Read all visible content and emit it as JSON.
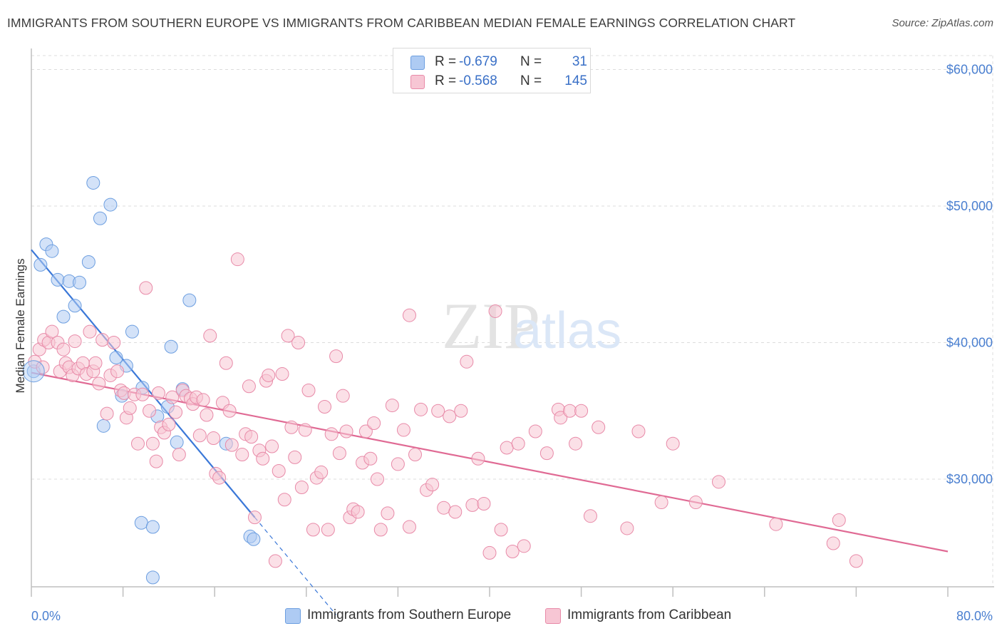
{
  "title": "IMMIGRANTS FROM SOUTHERN EUROPE VS IMMIGRANTS FROM CARIBBEAN MEDIAN FEMALE EARNINGS CORRELATION CHART",
  "source": "Source: ZipAtlas.com",
  "watermark": {
    "zip": "ZIP",
    "atlas": "atlas"
  },
  "legend": {
    "r_label": "R =",
    "n_label": "N =",
    "rows": [
      {
        "r": "-0.679",
        "n": "31",
        "color": "#aecbf3",
        "border": "#6c9ee0"
      },
      {
        "r": "-0.568",
        "n": "145",
        "color": "#f7c6d4",
        "border": "#e88aa8"
      }
    ]
  },
  "bottom_legend": [
    {
      "label": "Immigrants from Southern Europe",
      "color": "#aecbf3",
      "border": "#6c9ee0"
    },
    {
      "label": "Immigrants from Caribbean",
      "color": "#f7c6d4",
      "border": "#e88aa8"
    }
  ],
  "chart_data": {
    "type": "scatter",
    "ylabel": "Median Female Earnings",
    "xlim": [
      0,
      80
    ],
    "ylim": [
      21000,
      63000
    ],
    "x_tick_labels": [
      "0.0%",
      "80.0%"
    ],
    "y_ticks": [
      30000,
      40000,
      50000,
      60000
    ],
    "y_tick_labels": [
      "$30,000",
      "$40,000",
      "$50,000",
      "$60,000"
    ],
    "grid": true,
    "legend_position": "top-center",
    "series": [
      {
        "name": "Immigrants from Southern Europe",
        "color": "#aecbf3",
        "stroke": "#6c9ee0",
        "trend_color": "#3b78d8",
        "trend": {
          "x0": 0,
          "y0": 46800,
          "x1": 19.5,
          "y1": 27200,
          "dash_to_x": 26.6
        },
        "points": [
          [
            0.2,
            37900
          ],
          [
            0.8,
            45700
          ],
          [
            1.3,
            47200
          ],
          [
            1.8,
            46700
          ],
          [
            2.3,
            44600
          ],
          [
            2.8,
            41900
          ],
          [
            3.3,
            44500
          ],
          [
            3.8,
            42700
          ],
          [
            4.2,
            44400
          ],
          [
            5.0,
            45900
          ],
          [
            5.4,
            51700
          ],
          [
            6.0,
            49100
          ],
          [
            6.3,
            33900
          ],
          [
            6.9,
            50100
          ],
          [
            7.4,
            38900
          ],
          [
            7.9,
            36100
          ],
          [
            8.3,
            38300
          ],
          [
            8.8,
            40800
          ],
          [
            9.7,
            36700
          ],
          [
            9.6,
            26800
          ],
          [
            10.6,
            26500
          ],
          [
            10.6,
            22800
          ],
          [
            11.0,
            34600
          ],
          [
            11.9,
            35300
          ],
          [
            12.2,
            39700
          ],
          [
            12.7,
            32700
          ],
          [
            13.2,
            36600
          ],
          [
            13.8,
            43100
          ],
          [
            17.0,
            32600
          ],
          [
            19.1,
            25800
          ],
          [
            19.4,
            25600
          ]
        ]
      },
      {
        "name": "Immigrants from Caribbean",
        "color": "#f7c6d4",
        "stroke": "#e88aa8",
        "trend_color": "#e06a94",
        "trend": {
          "x0": 0,
          "y0": 37800,
          "x1": 80,
          "y1": 24700
        },
        "points": [
          [
            0.3,
            38600
          ],
          [
            0.7,
            39500
          ],
          [
            1.0,
            38200
          ],
          [
            1.1,
            40200
          ],
          [
            1.5,
            40000
          ],
          [
            1.8,
            40800
          ],
          [
            2.3,
            40000
          ],
          [
            2.5,
            37900
          ],
          [
            2.8,
            39500
          ],
          [
            3.0,
            38500
          ],
          [
            3.3,
            38200
          ],
          [
            3.6,
            37600
          ],
          [
            3.8,
            40100
          ],
          [
            4.1,
            38100
          ],
          [
            4.5,
            38500
          ],
          [
            4.8,
            37700
          ],
          [
            5.1,
            40800
          ],
          [
            5.4,
            37900
          ],
          [
            5.6,
            38500
          ],
          [
            5.9,
            37000
          ],
          [
            6.2,
            40200
          ],
          [
            6.6,
            34800
          ],
          [
            6.9,
            37600
          ],
          [
            7.2,
            40000
          ],
          [
            7.5,
            37900
          ],
          [
            7.8,
            36500
          ],
          [
            8.1,
            36300
          ],
          [
            8.3,
            34500
          ],
          [
            8.6,
            35200
          ],
          [
            9.0,
            36200
          ],
          [
            9.3,
            32600
          ],
          [
            9.7,
            36200
          ],
          [
            10.0,
            44000
          ],
          [
            10.3,
            35000
          ],
          [
            10.6,
            32600
          ],
          [
            10.9,
            31300
          ],
          [
            11.1,
            36300
          ],
          [
            11.3,
            33800
          ],
          [
            11.6,
            33400
          ],
          [
            12.0,
            34000
          ],
          [
            12.3,
            36000
          ],
          [
            12.6,
            34900
          ],
          [
            12.9,
            31800
          ],
          [
            13.2,
            36500
          ],
          [
            13.5,
            36100
          ],
          [
            13.9,
            35900
          ],
          [
            14.1,
            35500
          ],
          [
            14.4,
            36000
          ],
          [
            14.7,
            33200
          ],
          [
            15.0,
            35800
          ],
          [
            15.3,
            34700
          ],
          [
            15.6,
            40500
          ],
          [
            15.9,
            33000
          ],
          [
            16.1,
            30400
          ],
          [
            16.4,
            30100
          ],
          [
            16.7,
            35600
          ],
          [
            17.0,
            38500
          ],
          [
            17.3,
            35000
          ],
          [
            17.5,
            32500
          ],
          [
            18.0,
            46100
          ],
          [
            18.4,
            31800
          ],
          [
            18.7,
            33300
          ],
          [
            19.0,
            36800
          ],
          [
            19.2,
            33100
          ],
          [
            19.5,
            27200
          ],
          [
            19.9,
            32100
          ],
          [
            20.2,
            31500
          ],
          [
            20.5,
            37200
          ],
          [
            20.7,
            37600
          ],
          [
            21.0,
            32400
          ],
          [
            21.3,
            24000
          ],
          [
            21.6,
            30600
          ],
          [
            21.9,
            37700
          ],
          [
            22.1,
            28500
          ],
          [
            22.4,
            40500
          ],
          [
            22.7,
            33800
          ],
          [
            23.0,
            31600
          ],
          [
            23.3,
            40000
          ],
          [
            23.6,
            29400
          ],
          [
            23.9,
            33600
          ],
          [
            24.2,
            36500
          ],
          [
            24.6,
            26300
          ],
          [
            24.9,
            30100
          ],
          [
            25.3,
            30500
          ],
          [
            25.6,
            35300
          ],
          [
            25.9,
            26300
          ],
          [
            26.2,
            33300
          ],
          [
            26.6,
            39000
          ],
          [
            26.9,
            31900
          ],
          [
            27.2,
            36100
          ],
          [
            27.5,
            33500
          ],
          [
            27.8,
            27200
          ],
          [
            28.1,
            27800
          ],
          [
            28.5,
            27600
          ],
          [
            28.9,
            31200
          ],
          [
            29.2,
            33500
          ],
          [
            29.6,
            31500
          ],
          [
            29.9,
            34100
          ],
          [
            30.2,
            30000
          ],
          [
            30.5,
            26300
          ],
          [
            31.1,
            27500
          ],
          [
            31.5,
            35400
          ],
          [
            32.0,
            31100
          ],
          [
            32.5,
            33600
          ],
          [
            33.0,
            42000
          ],
          [
            33.5,
            31800
          ],
          [
            34.0,
            35100
          ],
          [
            34.5,
            29200
          ],
          [
            35.0,
            29600
          ],
          [
            35.5,
            35000
          ],
          [
            36.0,
            27900
          ],
          [
            36.5,
            34600
          ],
          [
            37.0,
            27600
          ],
          [
            37.5,
            35000
          ],
          [
            38.0,
            38600
          ],
          [
            38.5,
            28100
          ],
          [
            39.0,
            31500
          ],
          [
            39.5,
            28200
          ],
          [
            40.0,
            24600
          ],
          [
            40.5,
            42300
          ],
          [
            41.0,
            26300
          ],
          [
            41.5,
            32300
          ],
          [
            42.0,
            24700
          ],
          [
            42.5,
            32600
          ],
          [
            43.0,
            25100
          ],
          [
            44.0,
            33500
          ],
          [
            45.0,
            31900
          ],
          [
            46.0,
            35100
          ],
          [
            46.2,
            34500
          ],
          [
            47.0,
            35000
          ],
          [
            47.5,
            32600
          ],
          [
            48.0,
            35000
          ],
          [
            48.8,
            27300
          ],
          [
            49.5,
            33800
          ],
          [
            52.0,
            26400
          ],
          [
            53.0,
            33500
          ],
          [
            55.0,
            28300
          ],
          [
            56.0,
            32600
          ],
          [
            58.0,
            28300
          ],
          [
            60.0,
            29800
          ],
          [
            65.0,
            26700
          ],
          [
            70.0,
            25300
          ],
          [
            70.5,
            27000
          ],
          [
            72.0,
            24000
          ],
          [
            33.0,
            26500
          ]
        ]
      }
    ]
  }
}
